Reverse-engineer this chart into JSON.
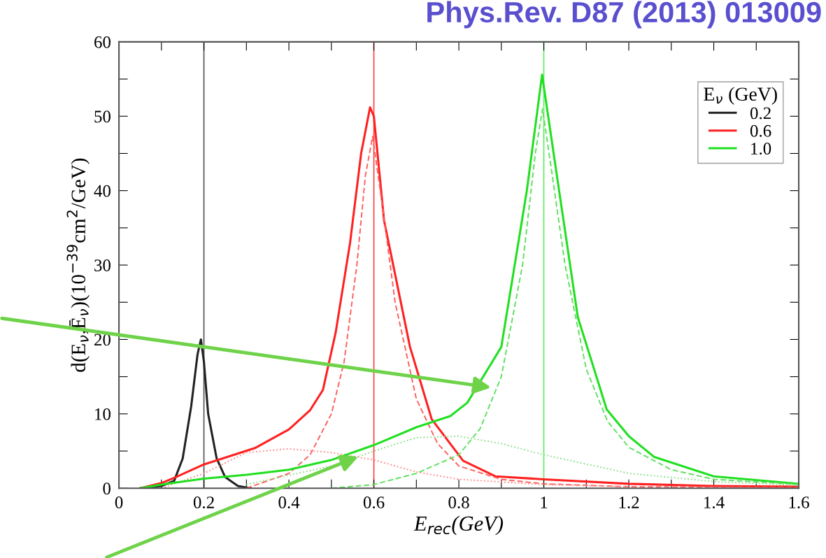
{
  "chart_data": {
    "type": "line",
    "title": "Phys.Rev. D87 (2013) 013009",
    "xlabel": "E$_{rec}$(GeV)",
    "ylabel": "d(E$_{ν}$,Ē$_{ν}$)(10$^{−39}$cm$^{2}$/GeV)",
    "legend_title": "E$_{ν}$ (GeV)",
    "xlim": [
      0,
      1.6
    ],
    "ylim": [
      0,
      60
    ],
    "xticks": [
      0,
      {
        "value": 0.1,
        "label": null
      },
      0.2,
      {
        "value": 0.3,
        "label": null
      },
      0.4,
      {
        "value": 0.5,
        "label": null
      },
      0.6,
      {
        "value": 0.7,
        "label": null
      },
      0.8,
      {
        "value": 0.9,
        "label": null
      },
      1,
      {
        "value": 1.1,
        "label": null
      },
      1.2,
      {
        "value": 1.3,
        "label": null
      },
      1.4,
      {
        "value": 1.5,
        "label": null
      },
      1.6
    ],
    "yticks": [
      0,
      {
        "value": 5,
        "label": null
      },
      10,
      {
        "value": 15,
        "label": null
      },
      20,
      {
        "value": 25,
        "label": null
      },
      30,
      {
        "value": 35,
        "label": null
      },
      40,
      {
        "value": 45,
        "label": null
      },
      50,
      {
        "value": 55,
        "label": null
      },
      60
    ],
    "grid": false,
    "legend": "top right",
    "marker": "none",
    "series": [
      {
        "name": "0.2",
        "color": "#222222",
        "line_style": "solid",
        "x": [
          0.05,
          0.1,
          0.13,
          0.15,
          0.17,
          0.185,
          0.193,
          0.2,
          0.21,
          0.23,
          0.25,
          0.28,
          0.31
        ],
        "values": [
          0,
          0.3,
          1,
          4,
          11,
          18,
          20,
          17,
          10,
          4,
          1.5,
          0.3,
          0
        ]
      },
      {
        "name": "0.6",
        "color": "#ff2020",
        "line_style": "solid",
        "x": [
          0.05,
          0.1,
          0.13,
          0.2,
          0.32,
          0.4,
          0.45,
          0.48,
          0.51,
          0.544,
          0.57,
          0.591,
          0.6,
          0.624,
          0.685,
          0.736,
          0.81,
          0.886,
          1.0,
          1.2,
          1.4,
          1.6
        ],
        "values": [
          0,
          0.7,
          1.4,
          3.2,
          5.4,
          7.9,
          10.5,
          13.2,
          20.9,
          33,
          45,
          51.2,
          50,
          36,
          19,
          9.3,
          3.7,
          1.6,
          1.2,
          0.6,
          0.3,
          0.2
        ]
      },
      {
        "color": "#ff6060",
        "line_style": "dashed",
        "x": [
          0.3,
          0.4,
          0.45,
          0.5,
          0.53,
          0.56,
          0.58,
          0.597,
          0.62,
          0.65,
          0.7,
          0.75,
          0.8,
          0.9,
          1.0,
          1.2,
          1.6
        ],
        "values": [
          0,
          2,
          4.5,
          10,
          17,
          30,
          42,
          47.3,
          38,
          25,
          12,
          6,
          3,
          1.2,
          0.6,
          0.2,
          0.1
        ]
      },
      {
        "color": "#ff9090",
        "line_style": "dotted",
        "x": [
          0.1,
          0.2,
          0.3,
          0.4,
          0.5,
          0.6,
          0.7,
          0.8,
          1.0,
          1.2
        ],
        "values": [
          0,
          2,
          4.8,
          5.3,
          4.8,
          3.8,
          2.2,
          1.2,
          0.5,
          0.2
        ]
      },
      {
        "name": "1.0",
        "color": "#20e020",
        "line_style": "solid",
        "x": [
          0.05,
          0.1,
          0.2,
          0.3,
          0.4,
          0.5,
          0.6,
          0.7,
          0.78,
          0.82,
          0.9,
          0.96,
          0.996,
          1.0,
          1.036,
          1.08,
          1.148,
          1.2,
          1.26,
          1.4,
          1.6
        ],
        "values": [
          0,
          0.5,
          1.3,
          1.8,
          2.5,
          3.8,
          5.8,
          8.2,
          9.7,
          11.5,
          19,
          40,
          55.6,
          54,
          40,
          23,
          10.6,
          7,
          4.2,
          1.6,
          0.6
        ]
      },
      {
        "color": "#60e060",
        "line_style": "dashed",
        "x": [
          0.5,
          0.6,
          0.7,
          0.8,
          0.85,
          0.9,
          0.95,
          0.98,
          0.997,
          1.02,
          1.05,
          1.1,
          1.15,
          1.2,
          1.3,
          1.4,
          1.6
        ],
        "values": [
          0,
          0.5,
          2,
          4.5,
          8,
          15,
          30,
          45,
          51,
          42,
          30,
          16,
          9,
          5.5,
          2.5,
          1.2,
          0.5
        ]
      },
      {
        "color": "#90e090",
        "line_style": "dotted",
        "x": [
          0.3,
          0.5,
          0.6,
          0.7,
          0.8,
          0.9,
          1.0,
          1.2,
          1.4,
          1.6
        ],
        "values": [
          0.5,
          3,
          5,
          6.8,
          7,
          6,
          4.5,
          2,
          0.9,
          0.4
        ]
      }
    ],
    "ref_lines": [
      {
        "axis": "x",
        "value": 0.2,
        "color": "#555555",
        "line_style": "solid"
      },
      {
        "axis": "x",
        "value": 0.6,
        "color": "#ff4040",
        "line_style": "solid"
      },
      {
        "axis": "x",
        "value": 1.0,
        "color": "#60ee60",
        "line_style": "solid"
      }
    ]
  }
}
